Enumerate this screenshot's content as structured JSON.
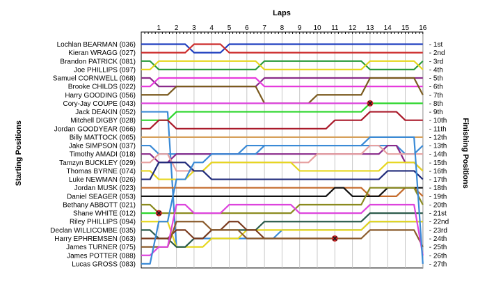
{
  "chart_data": {
    "type": "line",
    "title": "Laps",
    "ylabel_left": "Starting Positions",
    "ylabel_right": "Finishing Positions",
    "laps": [
      0,
      1,
      2,
      3,
      4,
      5,
      6,
      7,
      8,
      9,
      10,
      11,
      12,
      13,
      14,
      15,
      16
    ],
    "x_ticks": [
      "1",
      "2",
      "3",
      "4",
      "5",
      "6",
      "7",
      "8",
      "9",
      "10",
      "11",
      "12",
      "13",
      "14",
      "15",
      "16"
    ],
    "finishing_labels": [
      "1st",
      "2nd",
      "3rd",
      "4th",
      "5th",
      "6th",
      "7th",
      "8th",
      "9th",
      "10th",
      "11th",
      "12th",
      "13th",
      "14th",
      "15th",
      "16th",
      "17th",
      "18th",
      "19th",
      "20th",
      "21st",
      "22nd",
      "23rd",
      "24th",
      "25th",
      "26th",
      "27th"
    ],
    "retired_marker": "x",
    "series": [
      {
        "name": "Lochlan BEARMAN (036)",
        "color": "#1f3fbf",
        "positions": [
          1,
          1,
          1,
          2,
          2,
          1,
          1,
          1,
          1,
          1,
          1,
          1,
          1,
          1,
          1,
          1,
          1
        ]
      },
      {
        "name": "Kieran WRAGG (027)",
        "color": "#cc2a2a",
        "positions": [
          2,
          2,
          2,
          1,
          1,
          2,
          2,
          2,
          2,
          2,
          2,
          2,
          2,
          2,
          2,
          2,
          2
        ]
      },
      {
        "name": "Brandon PATRICK (081)",
        "color": "#2a9a3a",
        "positions": [
          3,
          4,
          4,
          4,
          4,
          4,
          4,
          3,
          3,
          3,
          3,
          3,
          3,
          4,
          4,
          4,
          3
        ]
      },
      {
        "name": "Joe PHILLIPS (097)",
        "color": "#e6d61e",
        "positions": [
          4,
          3,
          3,
          3,
          3,
          3,
          3,
          4,
          4,
          4,
          4,
          4,
          4,
          3,
          3,
          3,
          4
        ]
      },
      {
        "name": "Samuel CORNWELL (068)",
        "color": "#8a2a8a",
        "positions": [
          5,
          6,
          6,
          6,
          6,
          6,
          6,
          5,
          5,
          5,
          5,
          5,
          5,
          5,
          5,
          5,
          5
        ]
      },
      {
        "name": "Brooke CHILDS (022)",
        "color": "#e63bdc",
        "positions": [
          6,
          5,
          5,
          5,
          5,
          5,
          5,
          6,
          6,
          6,
          6,
          6,
          6,
          6,
          6,
          6,
          6
        ]
      },
      {
        "name": "Harry GOODING (056)",
        "color": "#7a5a1e",
        "positions": [
          7,
          7,
          6,
          6,
          6,
          6,
          6,
          8,
          8,
          8,
          7,
          7,
          7,
          5,
          5,
          5,
          7
        ]
      },
      {
        "name": "Cory-Jay COUPE (043)",
        "color": "#dd44dd",
        "positions": [
          8,
          8,
          8,
          8,
          8,
          8,
          8,
          8,
          8,
          8,
          8,
          8,
          8,
          8,
          null,
          null,
          null
        ]
      },
      {
        "name": "Jack DEAKIN (052)",
        "color": "#3a8ad6",
        "positions": [
          9,
          9,
          25,
          24,
          24,
          24,
          24,
          24,
          23,
          23,
          23,
          23,
          23,
          22,
          22,
          22,
          22
        ]
      },
      {
        "name": "Mitchell DIGBY (028)",
        "color": "#2ad62a",
        "positions": [
          10,
          10,
          9,
          9,
          9,
          9,
          9,
          9,
          9,
          9,
          9,
          9,
          9,
          8,
          8,
          8,
          8
        ]
      },
      {
        "name": "Jordan GOODYEAR (066)",
        "color": "#aa1a2a",
        "positions": [
          11,
          10,
          11,
          11,
          11,
          11,
          11,
          11,
          11,
          11,
          11,
          10,
          10,
          9,
          9,
          10,
          10
        ]
      },
      {
        "name": "Billy MATTOCK (065)",
        "color": "#d6a05a",
        "positions": [
          12,
          12,
          12,
          12,
          12,
          12,
          12,
          12,
          12,
          12,
          12,
          12,
          12,
          12,
          12,
          12,
          12
        ]
      },
      {
        "name": "Jake SIMPSON (037)",
        "color": "#3a8ad6",
        "positions": [
          13,
          14,
          14,
          14,
          14,
          14,
          13,
          13,
          13,
          13,
          13,
          13,
          13,
          13,
          13,
          14,
          13
        ]
      },
      {
        "name": "Timothy AMADI (018)",
        "color": "#8a2a8a",
        "positions": [
          14,
          15,
          14,
          14,
          14,
          14,
          14,
          14,
          14,
          14,
          14,
          14,
          14,
          14,
          13,
          15,
          16
        ]
      },
      {
        "name": "Tamzyn BUCKLEY (029)",
        "color": "#e6a0a0",
        "positions": [
          15,
          14,
          16,
          16,
          15,
          15,
          15,
          15,
          15,
          15,
          14,
          14,
          14,
          13,
          14,
          14,
          14
        ]
      },
      {
        "name": "Thomas BYRNE (074)",
        "color": "#e6d61e",
        "positions": [
          16,
          17,
          17,
          16,
          15,
          15,
          15,
          15,
          15,
          16,
          16,
          16,
          16,
          16,
          15,
          15,
          16
        ]
      },
      {
        "name": "Luke NEWMAN (026)",
        "color": "#1f2a7a",
        "positions": [
          17,
          15,
          15,
          16,
          17,
          17,
          17,
          17,
          17,
          17,
          17,
          17,
          17,
          17,
          16,
          16,
          17
        ]
      },
      {
        "name": "Jordan MUSK (023)",
        "color": "#c46a2a",
        "positions": [
          18,
          18,
          18,
          18,
          18,
          18,
          18,
          18,
          18,
          18,
          18,
          18,
          18,
          19,
          19,
          18,
          19
        ]
      },
      {
        "name": "Daniel SEAGER (053)",
        "color": "#111111",
        "positions": [
          19,
          19,
          19,
          19,
          19,
          19,
          19,
          19,
          19,
          19,
          19,
          18,
          19,
          19,
          18,
          18,
          18
        ]
      },
      {
        "name": "Bethany ABBOTT (021)",
        "color": "#8a8a1e",
        "positions": [
          20,
          21,
          21,
          21,
          21,
          21,
          21,
          21,
          21,
          20,
          20,
          20,
          20,
          18,
          18,
          18,
          20
        ]
      },
      {
        "name": "Shane WHITE (012)",
        "color": "#2ad62a",
        "positions": [
          21,
          21,
          null,
          null,
          null,
          null,
          null,
          null,
          null,
          null,
          null,
          null,
          null,
          null,
          null,
          null,
          null
        ]
      },
      {
        "name": "Riley PHILLIPS (094)",
        "color": "#e6d61e",
        "positions": [
          22,
          22,
          25,
          25,
          24,
          24,
          23,
          23,
          23,
          23,
          23,
          23,
          23,
          22,
          22,
          22,
          22
        ]
      },
      {
        "name": "Declan WILLICOMBE (035)",
        "color": "#2a5a4a",
        "positions": [
          23,
          24,
          25,
          24,
          23,
          23,
          23,
          22,
          22,
          22,
          22,
          22,
          22,
          21,
          21,
          21,
          21
        ]
      },
      {
        "name": "Harry EPHREMSEN (063)",
        "color": "#7a3a1e",
        "positions": [
          24,
          24,
          23,
          24,
          23,
          22,
          23,
          24,
          24,
          24,
          24,
          24,
          null,
          null,
          null,
          null,
          null
        ]
      },
      {
        "name": "James TURNER (075)",
        "color": "#8a5a2a",
        "positions": [
          25,
          25,
          22,
          22,
          23,
          23,
          24,
          24,
          24,
          24,
          24,
          24,
          24,
          23,
          23,
          23,
          25
        ]
      },
      {
        "name": "James POTTER (088)",
        "color": "#dd44dd",
        "positions": [
          26,
          25,
          20,
          21,
          21,
          20,
          20,
          20,
          20,
          21,
          21,
          21,
          21,
          20,
          20,
          20,
          26
        ]
      },
      {
        "name": "Lucas GROSS (083)",
        "color": "#3a8ad6",
        "positions": [
          27,
          22,
          17,
          15,
          14,
          14,
          14,
          13,
          13,
          13,
          13,
          13,
          13,
          12,
          12,
          12,
          27
        ]
      }
    ]
  }
}
